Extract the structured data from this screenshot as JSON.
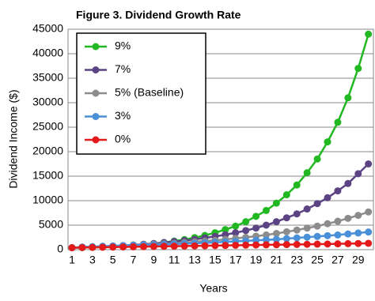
{
  "chart_data": {
    "type": "line",
    "title": "Figure 3. Dividend Growth Rate",
    "x_label": "Years",
    "y_label": "Dividend Income ($)",
    "categories": [
      "1",
      null,
      "3",
      null,
      "5",
      null,
      "7",
      null,
      "9",
      null,
      "11",
      null,
      "13",
      null,
      "15",
      null,
      "17",
      null,
      "19",
      null,
      "21",
      null,
      "23",
      null,
      "25",
      null,
      "27",
      null,
      "29",
      null
    ],
    "ylim": [
      0,
      45000
    ],
    "yticks": [
      0,
      5000,
      10000,
      15000,
      20000,
      25000,
      30000,
      35000,
      40000,
      45000
    ],
    "grid": true,
    "legend": "upper left",
    "series": [
      {
        "name": "9%",
        "color": "#22b822",
        "values": [
          400,
          420,
          470,
          550,
          650,
          750,
          900,
          1050,
          1250,
          1450,
          1750,
          2050,
          2450,
          2900,
          3450,
          4100,
          4800,
          5700,
          6800,
          8000,
          9500,
          11200,
          13200,
          15700,
          18500,
          22000,
          26000,
          31000,
          37000,
          44000
        ]
      },
      {
        "name": "7%",
        "color": "#5c4383",
        "values": [
          400,
          470,
          550,
          650,
          750,
          850,
          950,
          1100,
          1250,
          1450,
          1650,
          1850,
          2100,
          2400,
          2700,
          3050,
          3450,
          3900,
          4400,
          5000,
          5700,
          6500,
          7300,
          8300,
          9400,
          10600,
          12000,
          13500,
          15500,
          17500
        ]
      },
      {
        "name": "5% (Baseline)",
        "color": "#8c8c8c",
        "values": [
          400,
          480,
          550,
          620,
          700,
          800,
          900,
          1000,
          1100,
          1200,
          1300,
          1450,
          1600,
          1750,
          1900,
          2100,
          2300,
          2500,
          2750,
          3000,
          3300,
          3650,
          4000,
          4400,
          4800,
          5300,
          5800,
          6400,
          7000,
          7700
        ]
      },
      {
        "name": "3%",
        "color": "#4a90d9",
        "values": [
          400,
          550,
          620,
          700,
          760,
          820,
          880,
          940,
          1000,
          1080,
          1150,
          1230,
          1300,
          1400,
          1500,
          1600,
          1700,
          1800,
          1900,
          2000,
          2100,
          2250,
          2400,
          2550,
          2700,
          2850,
          3000,
          3200,
          3400,
          3600
        ]
      },
      {
        "name": "0%",
        "color": "#e41a1a",
        "values": [
          400,
          430,
          460,
          490,
          520,
          550,
          580,
          610,
          650,
          680,
          710,
          740,
          770,
          800,
          830,
          860,
          890,
          920,
          950,
          980,
          1000,
          1030,
          1060,
          1090,
          1120,
          1150,
          1180,
          1220,
          1260,
          1300
        ]
      }
    ]
  }
}
